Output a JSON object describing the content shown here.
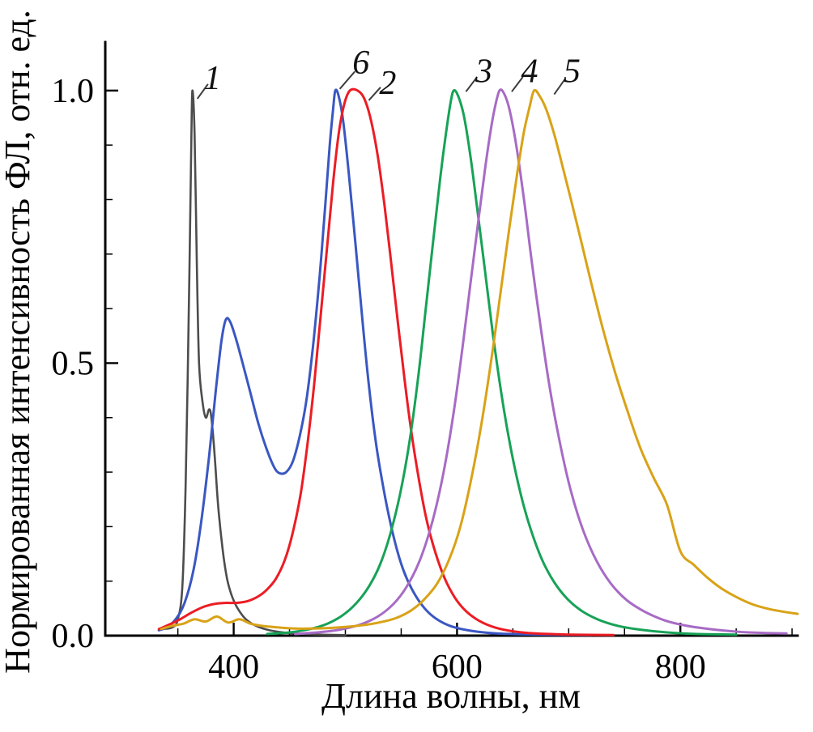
{
  "chart_data": {
    "type": "line",
    "title": "",
    "xlabel": "Длина волны, нм",
    "ylabel": "Нормированная интенсивность ФЛ, отн. ед.",
    "xlim": [
      285,
      905
    ],
    "ylim": [
      0,
      1.08
    ],
    "grid": false,
    "legend": "none",
    "x_ticks": [
      400,
      600,
      800
    ],
    "x_tick_labels": [
      "400",
      "600",
      "800"
    ],
    "x_minor_ticks": [
      350,
      450,
      500,
      550,
      650,
      700,
      750,
      850,
      900
    ],
    "y_ticks": [
      0,
      0.5,
      1.0
    ],
    "y_tick_labels": [
      "0.0",
      "0.5",
      "1.0"
    ],
    "y_minor_ticks": [
      0.1,
      0.2,
      0.3,
      0.4,
      0.6,
      0.7,
      0.8,
      0.9
    ],
    "series": [
      {
        "name": "1",
        "color": "#4d4d4d",
        "width": 2.6,
        "points": [
          [
            335,
            0.012
          ],
          [
            345,
            0.015
          ],
          [
            350,
            0.03
          ],
          [
            354,
            0.09
          ],
          [
            357,
            0.28
          ],
          [
            360,
            0.62
          ],
          [
            362,
            0.9
          ],
          [
            363,
            1.0
          ],
          [
            365,
            0.92
          ],
          [
            367,
            0.68
          ],
          [
            369,
            0.5
          ],
          [
            372,
            0.43
          ],
          [
            375,
            0.4
          ],
          [
            378,
            0.415
          ],
          [
            380,
            0.4
          ],
          [
            383,
            0.33
          ],
          [
            386,
            0.24
          ],
          [
            390,
            0.16
          ],
          [
            394,
            0.105
          ],
          [
            398,
            0.075
          ],
          [
            403,
            0.052
          ],
          [
            410,
            0.032
          ],
          [
            418,
            0.02
          ],
          [
            428,
            0.012
          ],
          [
            440,
            0.007
          ],
          [
            455,
            0.004
          ],
          [
            475,
            0.002
          ],
          [
            500,
            0.001
          ]
        ]
      },
      {
        "name": "6",
        "color": "#3a57c2",
        "width": 3,
        "points": [
          [
            333,
            0.01
          ],
          [
            340,
            0.015
          ],
          [
            348,
            0.03
          ],
          [
            356,
            0.06
          ],
          [
            364,
            0.12
          ],
          [
            371,
            0.21
          ],
          [
            378,
            0.33
          ],
          [
            384,
            0.45
          ],
          [
            389,
            0.54
          ],
          [
            393,
            0.58
          ],
          [
            397,
            0.575
          ],
          [
            402,
            0.545
          ],
          [
            408,
            0.5
          ],
          [
            415,
            0.445
          ],
          [
            422,
            0.39
          ],
          [
            429,
            0.345
          ],
          [
            436,
            0.31
          ],
          [
            441,
            0.298
          ],
          [
            447,
            0.3
          ],
          [
            453,
            0.32
          ],
          [
            459,
            0.365
          ],
          [
            465,
            0.43
          ],
          [
            471,
            0.53
          ],
          [
            477,
            0.66
          ],
          [
            482,
            0.79
          ],
          [
            486,
            0.9
          ],
          [
            489,
            0.965
          ],
          [
            491,
            1.0
          ],
          [
            494,
            0.99
          ],
          [
            498,
            0.945
          ],
          [
            503,
            0.85
          ],
          [
            509,
            0.72
          ],
          [
            515,
            0.585
          ],
          [
            521,
            0.46
          ],
          [
            528,
            0.345
          ],
          [
            536,
            0.25
          ],
          [
            544,
            0.175
          ],
          [
            552,
            0.12
          ],
          [
            561,
            0.08
          ],
          [
            571,
            0.05
          ],
          [
            582,
            0.03
          ],
          [
            595,
            0.017
          ],
          [
            612,
            0.009
          ],
          [
            635,
            0.004
          ],
          [
            670,
            0.002
          ],
          [
            720,
            0.001
          ]
        ]
      },
      {
        "name": "2",
        "color": "#ec1c24",
        "width": 3,
        "points": [
          [
            333,
            0.012
          ],
          [
            342,
            0.02
          ],
          [
            352,
            0.03
          ],
          [
            362,
            0.042
          ],
          [
            372,
            0.052
          ],
          [
            382,
            0.058
          ],
          [
            392,
            0.06
          ],
          [
            402,
            0.06
          ],
          [
            412,
            0.063
          ],
          [
            422,
            0.072
          ],
          [
            430,
            0.085
          ],
          [
            438,
            0.105
          ],
          [
            446,
            0.14
          ],
          [
            453,
            0.19
          ],
          [
            460,
            0.26
          ],
          [
            466,
            0.35
          ],
          [
            472,
            0.46
          ],
          [
            478,
            0.59
          ],
          [
            484,
            0.72
          ],
          [
            489,
            0.83
          ],
          [
            494,
            0.92
          ],
          [
            499,
            0.975
          ],
          [
            504,
            1.0
          ],
          [
            511,
            1.0
          ],
          [
            517,
            0.985
          ],
          [
            523,
            0.945
          ],
          [
            529,
            0.88
          ],
          [
            535,
            0.79
          ],
          [
            541,
            0.685
          ],
          [
            547,
            0.575
          ],
          [
            553,
            0.47
          ],
          [
            559,
            0.375
          ],
          [
            566,
            0.285
          ],
          [
            573,
            0.21
          ],
          [
            581,
            0.15
          ],
          [
            589,
            0.105
          ],
          [
            598,
            0.07
          ],
          [
            608,
            0.045
          ],
          [
            620,
            0.027
          ],
          [
            634,
            0.015
          ],
          [
            650,
            0.008
          ],
          [
            670,
            0.004
          ],
          [
            700,
            0.002
          ],
          [
            740,
            0.001
          ]
        ]
      },
      {
        "name": "3",
        "color": "#17a257",
        "width": 3,
        "points": [
          [
            430,
            0.003
          ],
          [
            450,
            0.006
          ],
          [
            468,
            0.012
          ],
          [
            484,
            0.022
          ],
          [
            498,
            0.038
          ],
          [
            510,
            0.06
          ],
          [
            521,
            0.09
          ],
          [
            531,
            0.13
          ],
          [
            540,
            0.185
          ],
          [
            549,
            0.26
          ],
          [
            557,
            0.35
          ],
          [
            565,
            0.47
          ],
          [
            572,
            0.6
          ],
          [
            579,
            0.73
          ],
          [
            585,
            0.84
          ],
          [
            590,
            0.92
          ],
          [
            594,
            0.975
          ],
          [
            597,
            1.0
          ],
          [
            601,
            0.99
          ],
          [
            606,
            0.955
          ],
          [
            612,
            0.88
          ],
          [
            618,
            0.785
          ],
          [
            625,
            0.67
          ],
          [
            632,
            0.555
          ],
          [
            640,
            0.44
          ],
          [
            648,
            0.345
          ],
          [
            657,
            0.26
          ],
          [
            666,
            0.195
          ],
          [
            676,
            0.14
          ],
          [
            687,
            0.098
          ],
          [
            699,
            0.067
          ],
          [
            712,
            0.045
          ],
          [
            727,
            0.029
          ],
          [
            744,
            0.018
          ],
          [
            764,
            0.011
          ],
          [
            788,
            0.006
          ],
          [
            815,
            0.003
          ],
          [
            850,
            0.002
          ]
        ]
      },
      {
        "name": "4",
        "color": "#a76bc5",
        "width": 3,
        "points": [
          [
            455,
            0.003
          ],
          [
            475,
            0.006
          ],
          [
            495,
            0.011
          ],
          [
            513,
            0.02
          ],
          [
            529,
            0.035
          ],
          [
            543,
            0.058
          ],
          [
            555,
            0.09
          ],
          [
            567,
            0.14
          ],
          [
            578,
            0.21
          ],
          [
            588,
            0.3
          ],
          [
            597,
            0.41
          ],
          [
            605,
            0.53
          ],
          [
            612,
            0.645
          ],
          [
            619,
            0.76
          ],
          [
            625,
            0.855
          ],
          [
            630,
            0.925
          ],
          [
            634,
            0.97
          ],
          [
            638,
            1.0
          ],
          [
            642,
            0.995
          ],
          [
            647,
            0.965
          ],
          [
            653,
            0.9
          ],
          [
            660,
            0.8
          ],
          [
            667,
            0.685
          ],
          [
            675,
            0.565
          ],
          [
            683,
            0.455
          ],
          [
            692,
            0.355
          ],
          [
            702,
            0.265
          ],
          [
            713,
            0.193
          ],
          [
            725,
            0.137
          ],
          [
            738,
            0.095
          ],
          [
            752,
            0.065
          ],
          [
            768,
            0.044
          ],
          [
            786,
            0.028
          ],
          [
            806,
            0.018
          ],
          [
            831,
            0.011
          ],
          [
            861,
            0.006
          ],
          [
            895,
            0.004
          ]
        ]
      },
      {
        "name": "5",
        "color": "#d9a217",
        "width": 3,
        "points": [
          [
            335,
            0.012
          ],
          [
            345,
            0.018
          ],
          [
            355,
            0.022
          ],
          [
            365,
            0.03
          ],
          [
            375,
            0.026
          ],
          [
            385,
            0.035
          ],
          [
            395,
            0.024
          ],
          [
            405,
            0.03
          ],
          [
            415,
            0.022
          ],
          [
            425,
            0.018
          ],
          [
            440,
            0.015
          ],
          [
            455,
            0.013
          ],
          [
            470,
            0.013
          ],
          [
            485,
            0.014
          ],
          [
            500,
            0.016
          ],
          [
            515,
            0.019
          ],
          [
            530,
            0.024
          ],
          [
            545,
            0.032
          ],
          [
            558,
            0.045
          ],
          [
            570,
            0.065
          ],
          [
            582,
            0.095
          ],
          [
            593,
            0.14
          ],
          [
            603,
            0.2
          ],
          [
            613,
            0.29
          ],
          [
            622,
            0.39
          ],
          [
            631,
            0.51
          ],
          [
            639,
            0.63
          ],
          [
            647,
            0.75
          ],
          [
            654,
            0.85
          ],
          [
            660,
            0.925
          ],
          [
            665,
            0.97
          ],
          [
            669,
            1.0
          ],
          [
            674,
            0.99
          ],
          [
            680,
            0.965
          ],
          [
            687,
            0.92
          ],
          [
            694,
            0.865
          ],
          [
            702,
            0.8
          ],
          [
            711,
            0.725
          ],
          [
            721,
            0.64
          ],
          [
            731,
            0.56
          ],
          [
            742,
            0.48
          ],
          [
            753,
            0.41
          ],
          [
            764,
            0.345
          ],
          [
            776,
            0.29
          ],
          [
            788,
            0.24
          ],
          [
            800,
            0.155
          ],
          [
            812,
            0.13
          ],
          [
            825,
            0.105
          ],
          [
            838,
            0.085
          ],
          [
            851,
            0.07
          ],
          [
            864,
            0.058
          ],
          [
            877,
            0.05
          ],
          [
            889,
            0.045
          ],
          [
            898,
            0.042
          ],
          [
            905,
            0.04
          ]
        ]
      }
    ],
    "annotations": [
      {
        "label": "1",
        "text_x": 381,
        "text_y": 1.025,
        "line": [
          367.5,
          0.985,
          377,
          1.012
        ]
      },
      {
        "label": "6",
        "text_x": 514,
        "text_y": 1.053,
        "line": [
          495,
          1.003,
          508.5,
          1.035
        ]
      },
      {
        "label": "2",
        "text_x": 538,
        "text_y": 1.016,
        "line": [
          521,
          0.982,
          531.5,
          1.006
        ]
      },
      {
        "label": "3",
        "text_x": 624,
        "text_y": 1.038,
        "line": [
          608,
          0.998,
          618,
          1.025
        ]
      },
      {
        "label": "4",
        "text_x": 665,
        "text_y": 1.038,
        "line": [
          649,
          0.998,
          659,
          1.025
        ]
      },
      {
        "label": "5",
        "text_x": 703,
        "text_y": 1.038,
        "line": [
          687,
          0.993,
          697,
          1.022
        ]
      }
    ]
  }
}
